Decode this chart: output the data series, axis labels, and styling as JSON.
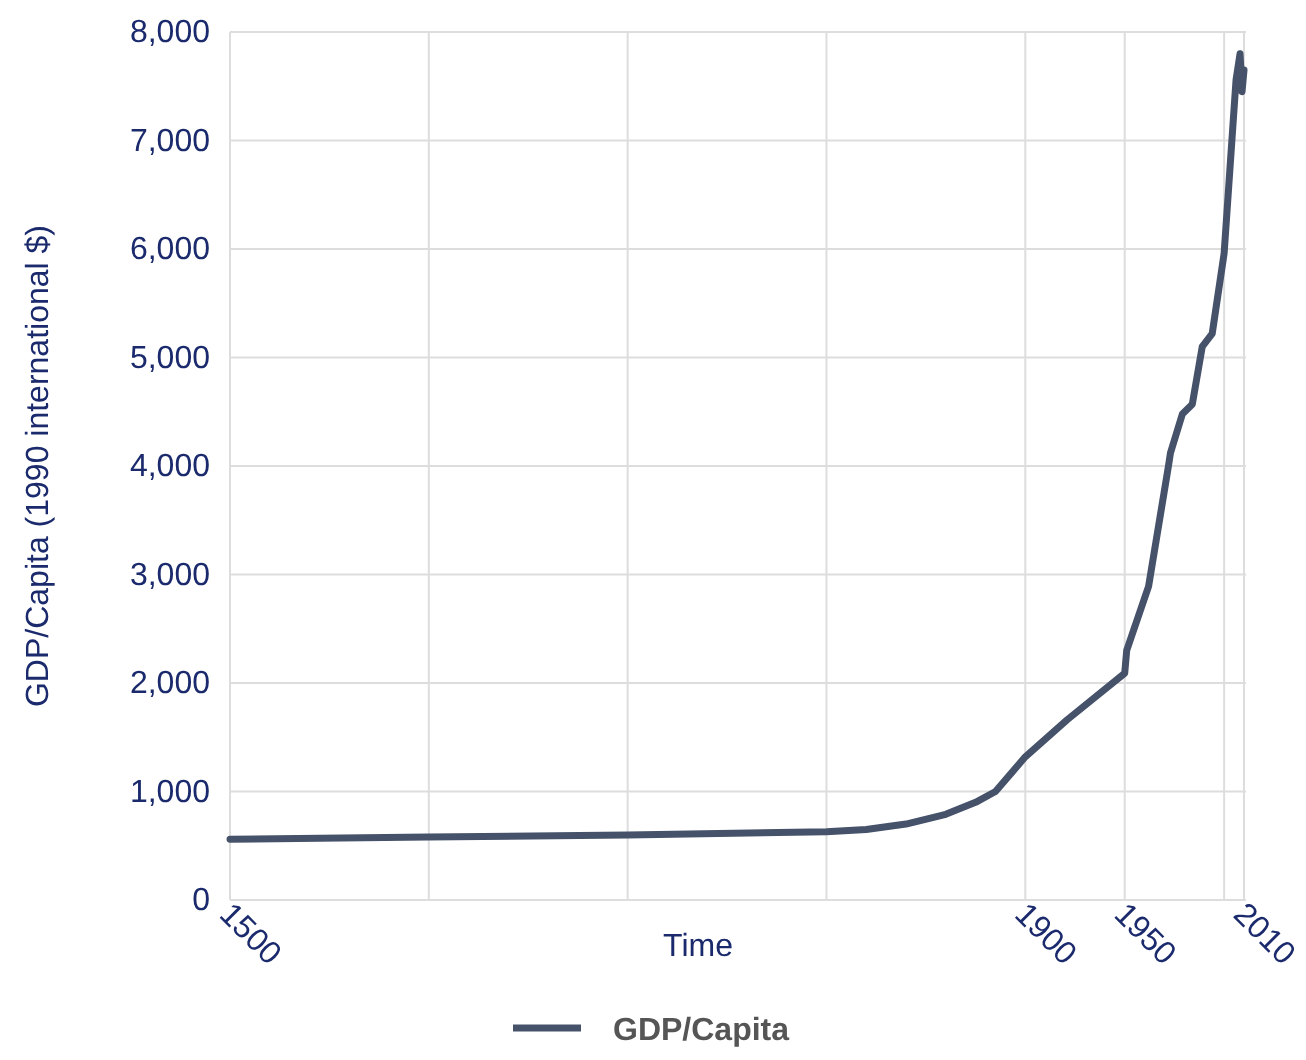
{
  "chart_data": {
    "type": "line",
    "xlabel": "Time",
    "ylabel": "GDP/Capita (1990 international $)",
    "xlim": [
      1500,
      2011
    ],
    "xticks": [
      1500,
      {
        "value": 1600,
        "label": null
      },
      {
        "value": 1700,
        "label": null
      },
      {
        "value": 1800,
        "label": null
      },
      1900,
      1950,
      {
        "value": 2000,
        "label": null
      },
      2010
    ],
    "ylim": [
      0,
      8000
    ],
    "yticks": [
      {
        "value": 0,
        "label": "0"
      },
      {
        "value": 1000,
        "label": "1,000"
      },
      {
        "value": 2000,
        "label": "2,000"
      },
      {
        "value": 3000,
        "label": "3,000"
      },
      {
        "value": 4000,
        "label": "4,000"
      },
      {
        "value": 5000,
        "label": "5,000"
      },
      {
        "value": 6000,
        "label": "6,000"
      },
      {
        "value": 7000,
        "label": "7,000"
      },
      {
        "value": 8000,
        "label": "8,000"
      }
    ],
    "grid": true,
    "legend": "bottom",
    "series": [
      {
        "name": "GDP/Capita",
        "color": "#46526a",
        "x": [
          1500,
          1600,
          1700,
          1800,
          1820,
          1840,
          1860,
          1875,
          1885,
          1900,
          1921,
          1950,
          1951,
          1962,
          1972,
          1973,
          1979,
          1984,
          1989,
          1994,
          2000,
          2003,
          2006,
          2008,
          2009,
          2010
        ],
        "values": [
          560,
          580,
          600,
          630,
          650,
          700,
          790,
          900,
          1000,
          1320,
          1660,
          2090,
          2300,
          2890,
          4000,
          4120,
          4480,
          4570,
          5100,
          5220,
          5960,
          6760,
          7560,
          7800,
          7450,
          7650
        ]
      }
    ]
  }
}
